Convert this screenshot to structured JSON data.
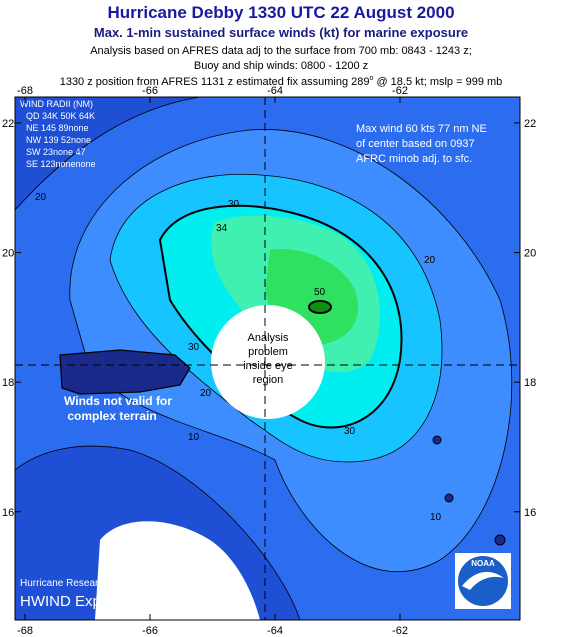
{
  "header": {
    "title": "Hurricane Debby 1330 UTC 22 August 2000",
    "subtitle": "Max. 1-min sustained surface winds (kt) for marine exposure",
    "line1": "Analysis based on AFRES data adj to the surface from 700 mb: 0843 - 1243 z;",
    "line2": "Buoy and ship winds: 0800 - 1200 z",
    "line3": [
      "1330 z position from AFRES 1131 z estimated  fix assuming 289",
      "o",
      " @ 18.5 kt; mslp = 999 mb"
    ]
  },
  "map": {
    "xlim": [
      -68.16,
      -60.08
    ],
    "ylim": [
      14.33,
      22.4
    ],
    "lon_ticks": [
      -68,
      -66,
      -64,
      -62
    ],
    "lat_ticks": [
      22,
      20,
      18,
      16
    ],
    "contour_labels": [
      "20",
      "30",
      "34",
      "50",
      "20",
      "30",
      "20",
      "10",
      "30",
      "10"
    ],
    "wind_radii": [
      "WIND RADII (NM)",
      "QD  34K  50K  64K",
      "NE  145   89none",
      "NW  139   52none",
      "SW   23none   47",
      "SE  123nonenone"
    ],
    "max_wind_note": [
      "Max wind 60 kts 77 nm NE",
      "of center based on 0937",
      "AFRC minob adj. to sfc."
    ],
    "eye_note": [
      "Analysis",
      "problem",
      "inside eye",
      "region"
    ],
    "terrain_note": [
      "Winds not valid for",
      "complex terrain"
    ],
    "credit": [
      "Hurricane Research Divisi",
      "HWIND Experimental Analys"
    ],
    "logo": "NOAA"
  }
}
